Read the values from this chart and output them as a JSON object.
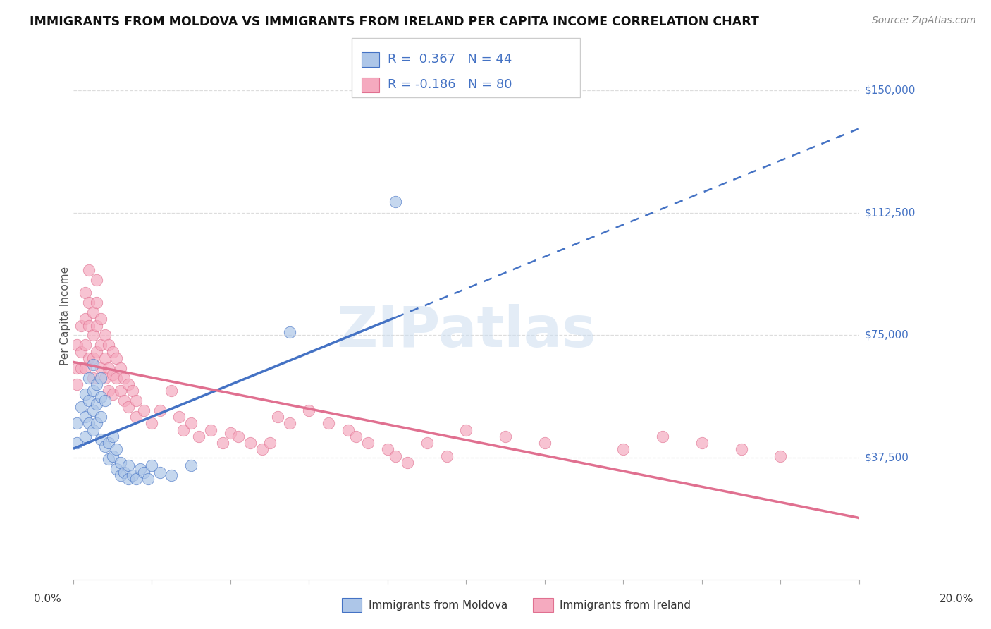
{
  "title": "IMMIGRANTS FROM MOLDOVA VS IMMIGRANTS FROM IRELAND PER CAPITA INCOME CORRELATION CHART",
  "source": "Source: ZipAtlas.com",
  "ylabel": "Per Capita Income",
  "ytick_labels": [
    "$37,500",
    "$75,000",
    "$112,500",
    "$150,000"
  ],
  "ytick_values": [
    37500,
    75000,
    112500,
    150000
  ],
  "ylim": [
    0,
    162000
  ],
  "xlim": [
    0,
    0.2
  ],
  "color_moldova": "#adc6e8",
  "color_ireland": "#f5aabf",
  "color_text_blue": "#4472c4",
  "color_trend_moldova": "#4472c4",
  "color_trend_ireland": "#e07090",
  "background_color": "#ffffff",
  "grid_color": "#dddddd",
  "moldova_x": [
    0.001,
    0.001,
    0.002,
    0.003,
    0.003,
    0.003,
    0.004,
    0.004,
    0.004,
    0.005,
    0.005,
    0.005,
    0.005,
    0.006,
    0.006,
    0.006,
    0.007,
    0.007,
    0.007,
    0.007,
    0.008,
    0.008,
    0.009,
    0.009,
    0.01,
    0.01,
    0.011,
    0.011,
    0.012,
    0.012,
    0.013,
    0.014,
    0.014,
    0.015,
    0.016,
    0.017,
    0.018,
    0.019,
    0.02,
    0.022,
    0.025,
    0.03,
    0.055,
    0.082
  ],
  "moldova_y": [
    48000,
    42000,
    53000,
    57000,
    50000,
    44000,
    62000,
    55000,
    48000,
    66000,
    58000,
    52000,
    46000,
    60000,
    54000,
    48000,
    62000,
    56000,
    50000,
    43000,
    55000,
    41000,
    42000,
    37000,
    44000,
    38000,
    40000,
    34000,
    36000,
    32000,
    33000,
    35000,
    31000,
    32000,
    31000,
    34000,
    33000,
    31000,
    35000,
    33000,
    32000,
    35000,
    76000,
    116000
  ],
  "ireland_x": [
    0.001,
    0.001,
    0.001,
    0.002,
    0.002,
    0.002,
    0.003,
    0.003,
    0.003,
    0.003,
    0.004,
    0.004,
    0.004,
    0.004,
    0.005,
    0.005,
    0.005,
    0.005,
    0.006,
    0.006,
    0.006,
    0.006,
    0.007,
    0.007,
    0.007,
    0.008,
    0.008,
    0.008,
    0.009,
    0.009,
    0.009,
    0.01,
    0.01,
    0.01,
    0.011,
    0.011,
    0.012,
    0.012,
    0.013,
    0.013,
    0.014,
    0.014,
    0.015,
    0.016,
    0.016,
    0.018,
    0.02,
    0.022,
    0.025,
    0.027,
    0.028,
    0.03,
    0.032,
    0.035,
    0.038,
    0.04,
    0.042,
    0.045,
    0.048,
    0.05,
    0.052,
    0.055,
    0.06,
    0.065,
    0.07,
    0.072,
    0.075,
    0.08,
    0.082,
    0.085,
    0.09,
    0.095,
    0.1,
    0.11,
    0.12,
    0.14,
    0.15,
    0.16,
    0.17,
    0.18
  ],
  "ireland_y": [
    72000,
    65000,
    60000,
    78000,
    70000,
    65000,
    88000,
    80000,
    72000,
    65000,
    95000,
    85000,
    78000,
    68000,
    82000,
    75000,
    68000,
    62000,
    92000,
    85000,
    78000,
    70000,
    80000,
    72000,
    65000,
    75000,
    68000,
    62000,
    72000,
    65000,
    58000,
    70000,
    63000,
    57000,
    68000,
    62000,
    65000,
    58000,
    62000,
    55000,
    60000,
    53000,
    58000,
    55000,
    50000,
    52000,
    48000,
    52000,
    58000,
    50000,
    46000,
    48000,
    44000,
    46000,
    42000,
    45000,
    44000,
    42000,
    40000,
    42000,
    50000,
    48000,
    52000,
    48000,
    46000,
    44000,
    42000,
    40000,
    38000,
    36000,
    42000,
    38000,
    46000,
    44000,
    42000,
    40000,
    44000,
    42000,
    40000,
    38000
  ]
}
